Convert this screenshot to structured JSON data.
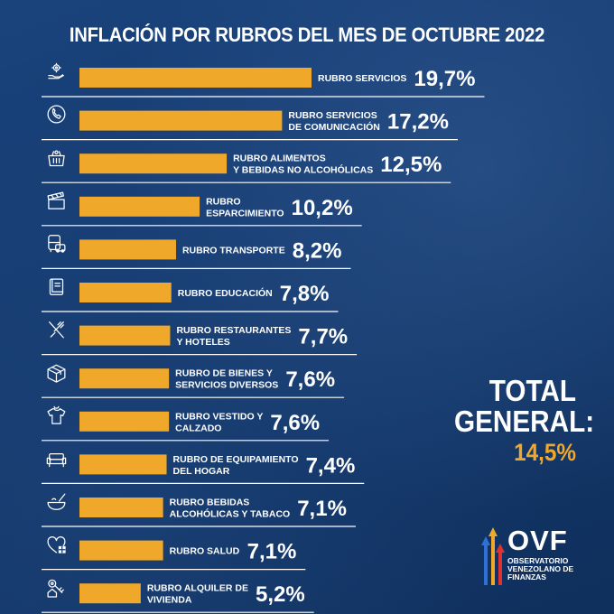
{
  "title": "INFLACIÓN POR RUBROS DEL MES DE OCTUBRE 2022",
  "colors": {
    "bar": "#f0a82a",
    "background": "#143a6e",
    "text": "#ffffff",
    "accent": "#f0a82a"
  },
  "total": {
    "label": "TOTAL GENERAL:",
    "value": "14,5%"
  },
  "logo": {
    "name": "OVF",
    "line1": "OBSERVATORIO",
    "line2": "VENEZOLANO DE",
    "line3": "FINANZAS"
  },
  "chart_data": {
    "type": "bar",
    "orientation": "horizontal",
    "unit": "%",
    "categories": [
      "RUBRO SERVICIOS",
      "RUBRO SERVICIOS DE COMUNICACIÓN",
      "RUBRO ALIMENTOS Y BEBIDAS NO ALCOHÓLICAS",
      "RUBRO ESPARCIMIENTO",
      "RUBRO TRANSPORTE",
      "RUBRO EDUCACIÓN",
      "RUBRO RESTAURANTES Y HOTELES",
      "RUBRO DE BIENES Y SERVICIOS DIVERSOS",
      "RUBRO VESTIDO Y CALZADO",
      "RUBRO DE EQUIPAMIENTO DEL HOGAR",
      "RUBRO BEBIDAS ALCOHÓLICAS Y TABACO",
      "RUBRO SALUD",
      "RUBRO ALQUILER DE VIVIENDA"
    ],
    "label_lines": [
      [
        "RUBRO SERVICIOS"
      ],
      [
        "RUBRO SERVICIOS",
        "DE COMUNICACIÓN"
      ],
      [
        "RUBRO ALIMENTOS",
        "Y BEBIDAS NO ALCOHÓLICAS"
      ],
      [
        "RUBRO",
        "ESPARCIMIENTO"
      ],
      [
        "RUBRO TRANSPORTE"
      ],
      [
        "RUBRO EDUCACIÓN"
      ],
      [
        "RUBRO RESTAURANTES",
        "Y HOTELES"
      ],
      [
        "RUBRO DE BIENES Y",
        "SERVICIOS DIVERSOS"
      ],
      [
        "RUBRO VESTIDO Y",
        "CALZADO"
      ],
      [
        "RUBRO DE EQUIPAMIENTO",
        "DEL HOGAR"
      ],
      [
        "RUBRO BEBIDAS",
        "ALCOHÓLICAS Y TABACO"
      ],
      [
        "RUBRO SALUD"
      ],
      [
        "RUBRO ALQUILER DE",
        "VIVIENDA"
      ]
    ],
    "values": [
      19.7,
      17.2,
      12.5,
      10.2,
      8.2,
      7.8,
      7.7,
      7.6,
      7.6,
      7.4,
      7.1,
      7.1,
      5.2
    ],
    "value_labels": [
      "19,7%",
      "17,2%",
      "12,5%",
      "10,2%",
      "8,2%",
      "7,8%",
      "7,7%",
      "7,6%",
      "7,6%",
      "7,4%",
      "7,1%",
      "7,1%",
      "5,2%"
    ],
    "icons": [
      "gear-hand-icon",
      "phone-icon",
      "grocery-basket-icon",
      "clapperboard-icon",
      "bus-car-icon",
      "book-icon",
      "fork-knife-icon",
      "box-icon",
      "tshirt-icon",
      "sofa-icon",
      "bowl-icon",
      "heart-plus-icon",
      "key-house-icon"
    ]
  }
}
